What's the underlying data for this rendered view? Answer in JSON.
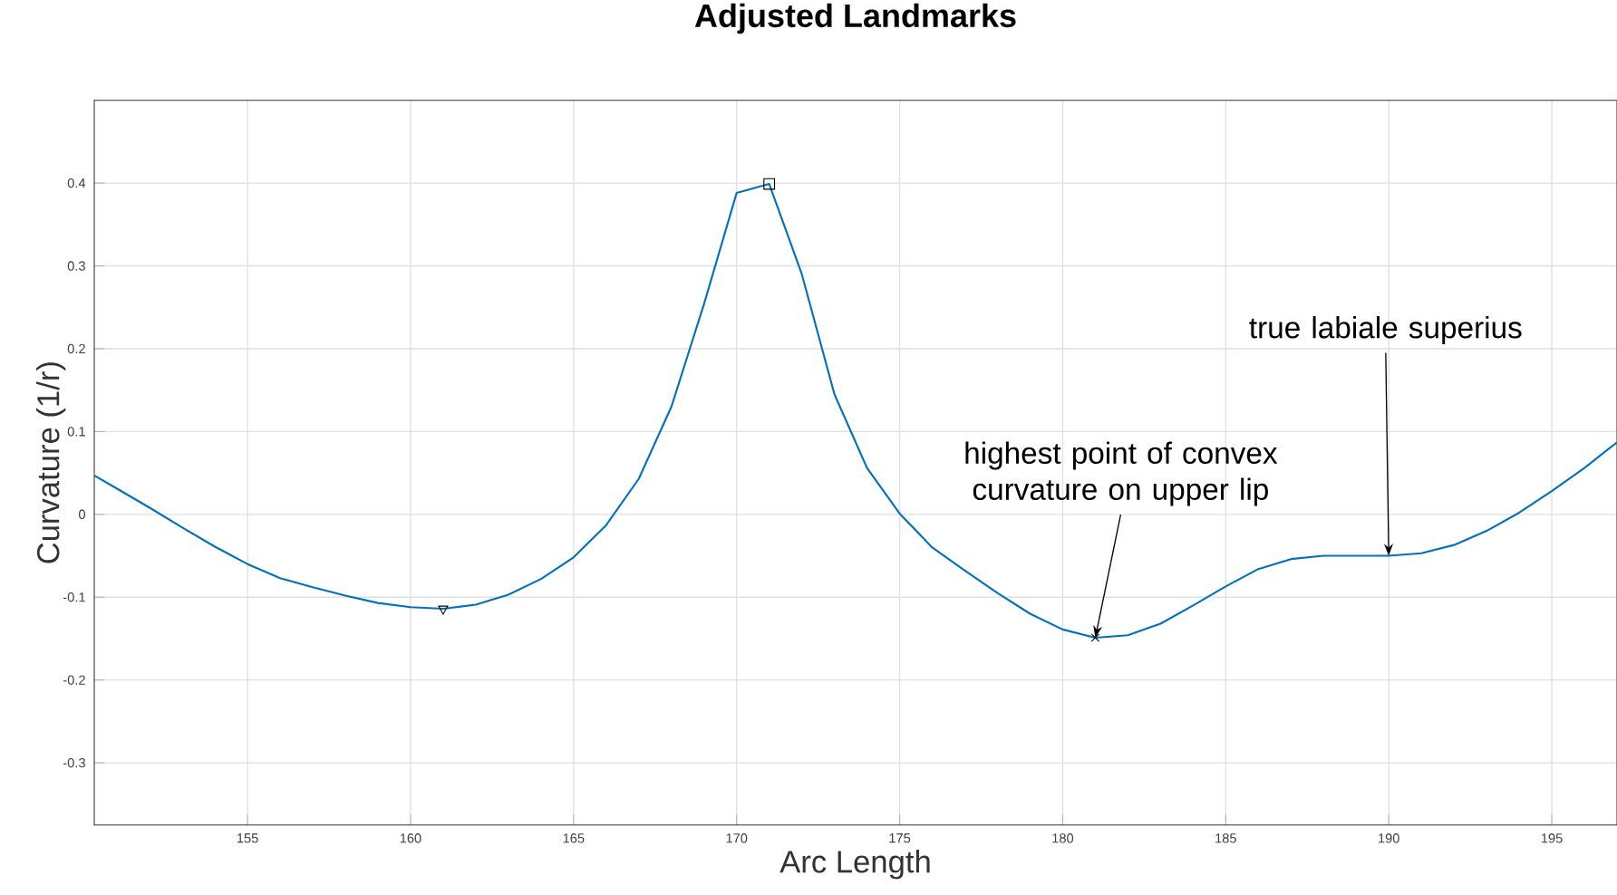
{
  "chart_data": {
    "type": "line",
    "title": "Adjusted Landmarks",
    "xlabel": "Arc Length",
    "ylabel": "Curvature (1/r)",
    "series": [
      {
        "color": "#0072bd",
        "marker": "none",
        "x": [
          150.3,
          151,
          152,
          153,
          154,
          155,
          156,
          157,
          158,
          159,
          160,
          161,
          162,
          163,
          164,
          165,
          166,
          167,
          168,
          169,
          170,
          171,
          172,
          173,
          174,
          175,
          176,
          177,
          178,
          179,
          180,
          181,
          182,
          183,
          184,
          185,
          186,
          187,
          188,
          189,
          190,
          191,
          192,
          193,
          194,
          195,
          196,
          197
        ],
        "values": [
          0.047,
          0.031,
          0.008,
          -0.016,
          -0.039,
          -0.06,
          -0.077,
          -0.088,
          -0.098,
          -0.107,
          -0.112,
          -0.114,
          -0.109,
          -0.097,
          -0.078,
          -0.052,
          -0.013,
          0.043,
          0.13,
          0.254,
          0.388,
          0.399,
          0.29,
          0.145,
          0.056,
          0.001,
          -0.04,
          -0.068,
          -0.095,
          -0.12,
          -0.139,
          -0.149,
          -0.146,
          -0.132,
          -0.11,
          -0.087,
          -0.066,
          -0.054,
          -0.05,
          -0.05,
          -0.05,
          -0.047,
          -0.037,
          -0.02,
          0.002,
          0.028,
          0.056,
          0.087
        ]
      },
      {
        "type": "scatter",
        "color": "#000000",
        "marker": "triangle",
        "x": [
          161
        ],
        "values": [
          -0.114
        ]
      },
      {
        "type": "scatter",
        "color": "#000000",
        "marker": "square",
        "x": [
          171
        ],
        "values": [
          0.399
        ]
      },
      {
        "type": "scatter",
        "color": "#000000",
        "marker": "cross",
        "x": [
          181
        ],
        "values": [
          -0.149
        ]
      }
    ],
    "annotations": [
      {
        "text": "highest point of convex curvature on upper lip",
        "x": 181,
        "y": -0.149
      },
      {
        "text": "true labiale superius",
        "x": 190,
        "y": -0.05
      }
    ],
    "xlim": [
      150.3,
      197
    ],
    "ylim": [
      -0.375,
      0.5
    ],
    "xticks": [
      155,
      160,
      165,
      170,
      175,
      180,
      185,
      190,
      195
    ],
    "yticks": [
      -0.3,
      -0.2,
      -0.1,
      0,
      0.1,
      0.2,
      0.3,
      0.4
    ],
    "grid": true
  }
}
